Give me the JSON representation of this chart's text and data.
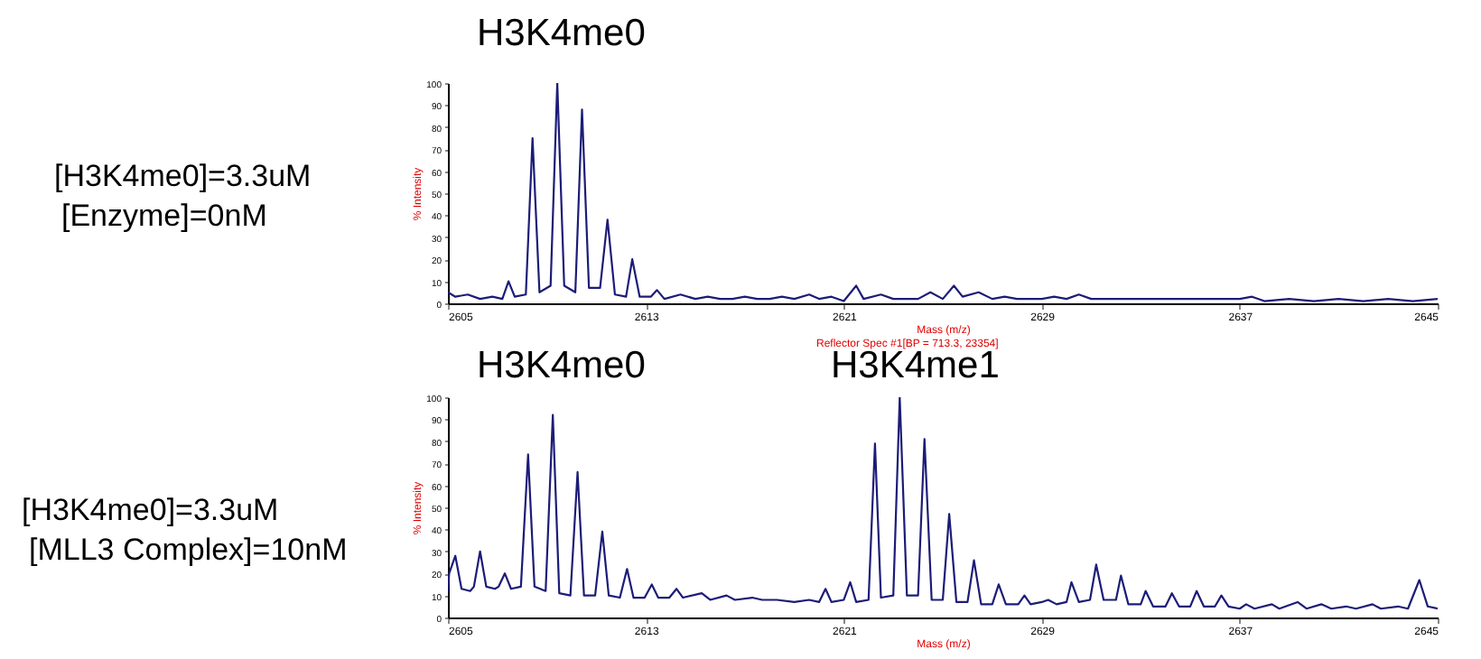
{
  "chart_data": [
    {
      "type": "line",
      "xlabel": "Mass (m/z)",
      "ylabel": "% Intensity",
      "xlim": [
        2605,
        2645
      ],
      "xticks": [
        2605,
        2613,
        2621,
        2629,
        2637,
        2645
      ],
      "ylim": [
        0,
        100
      ],
      "yticks": [
        0,
        10,
        20,
        30,
        40,
        50,
        60,
        70,
        80,
        90,
        100
      ],
      "annotations": [
        "[H3K4me0]=3.3uM",
        "[Enzyme]=0nM",
        "H3K4me0"
      ],
      "x": [
        2605,
        2605.3,
        2605.8,
        2606.3,
        2606.8,
        2607.2,
        2607.45,
        2607.7,
        2608.15,
        2608.42,
        2608.7,
        2609.15,
        2609.42,
        2609.7,
        2610.15,
        2610.42,
        2610.7,
        2611.15,
        2611.45,
        2611.75,
        2612.2,
        2612.45,
        2612.75,
        2613.2,
        2613.45,
        2613.75,
        2614.4,
        2615,
        2615.5,
        2616,
        2616.5,
        2617,
        2617.5,
        2618,
        2618.5,
        2619,
        2619.6,
        2620,
        2620.5,
        2621,
        2621.5,
        2621.8,
        2622.5,
        2623,
        2623.5,
        2624,
        2624.5,
        2625,
        2625.45,
        2625.8,
        2626.45,
        2627,
        2627.5,
        2628,
        2629,
        2629.5,
        2630,
        2630.5,
        2631,
        2632,
        2633,
        2634,
        2635,
        2636,
        2637,
        2637.5,
        2638,
        2639,
        2640,
        2641,
        2642,
        2643,
        2644,
        2645
      ],
      "series": [
        {
          "color": "#1c1c78",
          "values": [
            5,
            3,
            4,
            2,
            3,
            2,
            10,
            3,
            4,
            75,
            5,
            8,
            100,
            8,
            5,
            88,
            7,
            7,
            38,
            4,
            3,
            20,
            3,
            3,
            6,
            2,
            4,
            2,
            3,
            2,
            2,
            3,
            2,
            2,
            3,
            2,
            4,
            2,
            3,
            1,
            8,
            2,
            4,
            2,
            2,
            2,
            5,
            2,
            8,
            3,
            5,
            2,
            3,
            2,
            2,
            3,
            2,
            4,
            2,
            2,
            2,
            2,
            2,
            2,
            2,
            3,
            1,
            2,
            1,
            2,
            1,
            2,
            1,
            2
          ]
        }
      ]
    },
    {
      "type": "line",
      "subtitle": "Reflector Spec #1[BP = 713.3, 23354]",
      "xlabel": "Mass (m/z)",
      "ylabel": "% Intensity",
      "xlim": [
        2605,
        2645
      ],
      "xticks": [
        2605,
        2613,
        2621,
        2629,
        2637,
        2645
      ],
      "ylim": [
        0,
        100
      ],
      "yticks": [
        0,
        10,
        20,
        30,
        40,
        50,
        60,
        70,
        80,
        90,
        100
      ],
      "annotations": [
        "[H3K4me0]=3.3uM",
        "[MLL3 Complex]=10nM",
        "H3K4me0",
        "H3K4me1"
      ],
      "x": [
        2605,
        2605.05,
        2605.3,
        2605.55,
        2605.9,
        2606.05,
        2606.3,
        2606.55,
        2606.9,
        2607.05,
        2607.3,
        2607.55,
        2607.95,
        2608.24,
        2608.5,
        2608.95,
        2609.24,
        2609.5,
        2609.95,
        2610.24,
        2610.5,
        2610.95,
        2611.24,
        2611.5,
        2611.95,
        2612.24,
        2612.5,
        2612.95,
        2613.24,
        2613.5,
        2613.95,
        2614.24,
        2614.5,
        2615.26,
        2615.6,
        2616.26,
        2616.6,
        2617.3,
        2617.7,
        2618.3,
        2619,
        2619.6,
        2620,
        2620.26,
        2620.5,
        2621,
        2621.26,
        2621.5,
        2622,
        2622.26,
        2622.5,
        2623,
        2623.26,
        2623.55,
        2624,
        2624.26,
        2624.55,
        2625,
        2625.26,
        2625.55,
        2626,
        2626.26,
        2626.55,
        2627,
        2627.26,
        2627.55,
        2628.05,
        2628.3,
        2628.55,
        2629,
        2629.26,
        2629.6,
        2630,
        2630.2,
        2630.5,
        2630.95,
        2631.2,
        2631.5,
        2632,
        2632.2,
        2632.5,
        2633,
        2633.2,
        2633.5,
        2634,
        2634.26,
        2634.55,
        2635,
        2635.26,
        2635.55,
        2636,
        2636.26,
        2636.55,
        2637,
        2637.26,
        2637.6,
        2638.3,
        2638.6,
        2639.34,
        2639.7,
        2640.3,
        2640.7,
        2641.3,
        2641.7,
        2642.37,
        2642.7,
        2643.4,
        2643.8,
        2644.26,
        2644.6,
        2645
      ],
      "series": [
        {
          "color": "#1c1c78",
          "values": [
            12,
            20,
            28,
            13,
            12,
            14,
            30,
            14,
            13,
            14,
            20,
            13,
            14,
            74,
            14,
            12,
            92,
            11,
            10,
            66,
            10,
            10,
            39,
            10,
            9,
            22,
            9,
            9,
            15,
            9,
            9,
            13,
            9,
            11,
            8,
            10,
            8,
            9,
            8,
            8,
            7,
            8,
            7,
            13,
            7,
            8,
            16,
            7,
            8,
            79,
            9,
            10,
            100,
            10,
            10,
            81,
            8,
            8,
            47,
            7,
            7,
            26,
            6,
            6,
            15,
            6,
            6,
            10,
            6,
            7,
            8,
            6,
            7,
            16,
            7,
            8,
            24,
            8,
            8,
            19,
            6,
            6,
            12,
            5,
            5,
            11,
            5,
            5,
            12,
            5,
            5,
            10,
            5,
            4,
            6,
            4,
            6,
            4,
            7,
            4,
            6,
            4,
            5,
            4,
            6,
            4,
            5,
            4,
            17,
            5,
            4
          ]
        }
      ]
    }
  ]
}
